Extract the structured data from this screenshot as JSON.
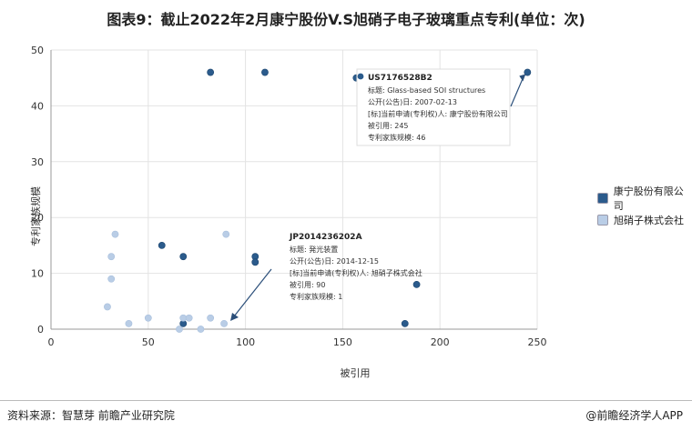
{
  "title": "图表9：截止2022年2月康宁股份V.S旭硝子电子玻璃重点专利(单位：次)",
  "footer": {
    "source": "资料来源：智慧芽 前瞻产业研究院",
    "brand": "@前瞻经济学人APP"
  },
  "chart_data": {
    "type": "scatter",
    "title": "图表9：截止2022年2月康宁股份V.S旭硝子电子玻璃重点专利(单位：次)",
    "xlabel": "被引用",
    "ylabel": "专利家族规模",
    "xlim": [
      0,
      250
    ],
    "ylim": [
      0,
      50
    ],
    "xticks": [
      0,
      50,
      100,
      150,
      200,
      250
    ],
    "yticks": [
      0,
      10,
      20,
      30,
      40,
      50
    ],
    "grid": true,
    "legend_position": "right",
    "series": [
      {
        "name": "康宁股份有限公司",
        "color": "#2b5b8c",
        "points": [
          [
            82,
            46
          ],
          [
            110,
            46
          ],
          [
            157,
            45
          ],
          [
            245,
            46
          ],
          [
            57,
            15
          ],
          [
            68,
            13
          ],
          [
            105,
            13
          ],
          [
            105,
            12
          ],
          [
            188,
            8
          ],
          [
            68,
            1
          ],
          [
            182,
            1
          ]
        ]
      },
      {
        "name": "旭硝子株式会社",
        "color": "#b9cde6",
        "points": [
          [
            33,
            17
          ],
          [
            31,
            13
          ],
          [
            31,
            9
          ],
          [
            29,
            4
          ],
          [
            40,
            1
          ],
          [
            50,
            2
          ],
          [
            68,
            2
          ],
          [
            71,
            2
          ],
          [
            82,
            2
          ],
          [
            89,
            1
          ],
          [
            66,
            0
          ],
          [
            77,
            0
          ],
          [
            90,
            17
          ]
        ]
      }
    ],
    "annotations": [
      {
        "id": "US7176528B2",
        "lines": [
          "标题: Glass-based SOI structures",
          "公开(公告)日: 2007-02-13",
          "[标]当前申请(专利权)人: 康宁股份有限公司",
          "被引用: 245",
          "专利家族规模: 46"
        ]
      },
      {
        "id": "JP2014236202A",
        "lines": [
          "标题: 発光装置",
          "公开(公告)日: 2014-12-15",
          "[标]当前申请(专利权)人: 旭硝子株式会社",
          "被引用: 90",
          "专利家族规模: 1"
        ]
      }
    ]
  }
}
